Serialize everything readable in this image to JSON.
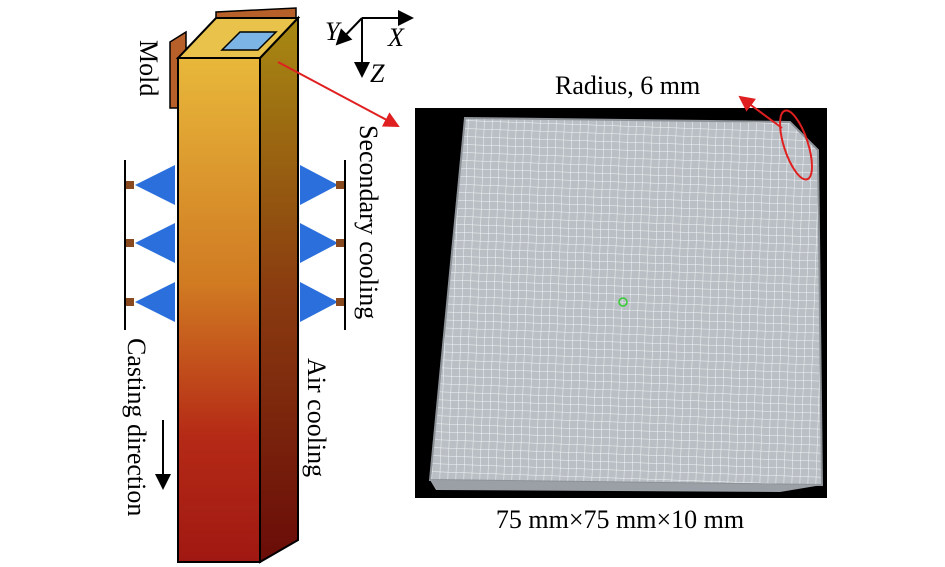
{
  "axes": {
    "y": "Y",
    "x": "X",
    "z": "Z"
  },
  "strand": {
    "mold": "Mold",
    "secondary_cooling": "Secondary cooling",
    "air_cooling": "Air cooling",
    "casting_direction": "Casting direction"
  },
  "mesh": {
    "radius": "Radius, 6 mm",
    "dimensions": "75 mm×75 mm×10 mm"
  }
}
